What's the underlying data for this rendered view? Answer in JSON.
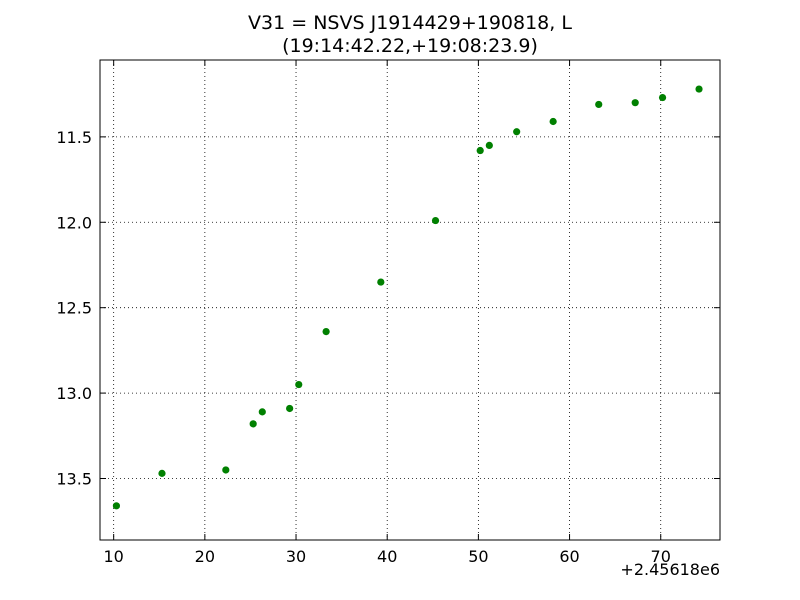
{
  "chart_data": {
    "type": "scatter",
    "title_line1": "V31 = NSVS J1914429+190818, L",
    "title_line2": "(19:14:42.22,+19:08:23.9)",
    "xlabel": "",
    "ylabel": "",
    "x_offset_label": "+2.45618e6",
    "xlim": [
      8.5,
      76.5
    ],
    "ylim": [
      13.86,
      11.05
    ],
    "y_inverted": true,
    "grid": true,
    "marker_color": "#008000",
    "x_ticks": [
      10,
      20,
      30,
      40,
      50,
      60,
      70
    ],
    "x_tick_labels": [
      "10",
      "20",
      "30",
      "40",
      "50",
      "60",
      "70"
    ],
    "y_ticks": [
      11.5,
      12.0,
      12.5,
      13.0,
      13.5
    ],
    "y_tick_labels": [
      "11.5",
      "12.0",
      "12.5",
      "13.0",
      "13.5"
    ],
    "x": [
      10.3,
      15.3,
      22.3,
      25.3,
      26.3,
      29.3,
      30.3,
      33.3,
      39.3,
      45.3,
      50.2,
      51.2,
      54.2,
      58.2,
      63.2,
      67.2,
      70.2,
      74.2
    ],
    "y": [
      13.66,
      13.47,
      13.45,
      13.18,
      13.11,
      13.09,
      12.95,
      12.64,
      12.35,
      11.99,
      11.58,
      11.55,
      11.47,
      11.41,
      11.31,
      11.3,
      11.27,
      11.22
    ]
  }
}
